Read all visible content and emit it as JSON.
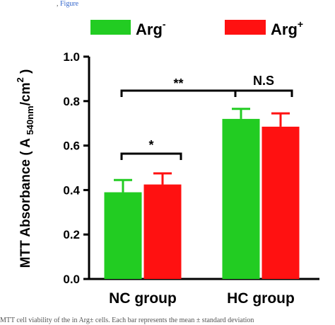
{
  "page_text": {
    "top_snippet_a": ", ",
    "top_snippet_b": "Figure",
    "bottom_caption": "MTT cell viability of the in Arg± cells. Each bar represents the mean ± standard deviation"
  },
  "chart_data": {
    "type": "bar",
    "categories": [
      "NC group",
      "HC group"
    ],
    "series": [
      {
        "name": "Arg-",
        "values": [
          0.39,
          0.72
        ],
        "errors": [
          0.055,
          0.045
        ],
        "color": "#22cc22"
      },
      {
        "name": "Arg+",
        "values": [
          0.425,
          0.685
        ],
        "errors": [
          0.05,
          0.06
        ],
        "color": "#ff1111"
      }
    ],
    "ylabel": "MTT Absorbance ( A 540nm/cm2 )",
    "ylim": [
      0,
      1.0
    ],
    "yticks": [
      "0.0",
      "0.2",
      "0.4",
      "0.6",
      "0.8",
      "1.0"
    ],
    "legend": {
      "placement": "top",
      "entries": [
        "Arg-",
        "Arg+"
      ]
    },
    "significance": [
      {
        "label": "*",
        "between": "Arg- NC vs Arg+ NC"
      },
      {
        "label": "**",
        "between": "NC group vs HC group"
      },
      {
        "label": "N.S",
        "between": "Arg- HC vs Arg+ HC"
      }
    ],
    "grid": false
  }
}
